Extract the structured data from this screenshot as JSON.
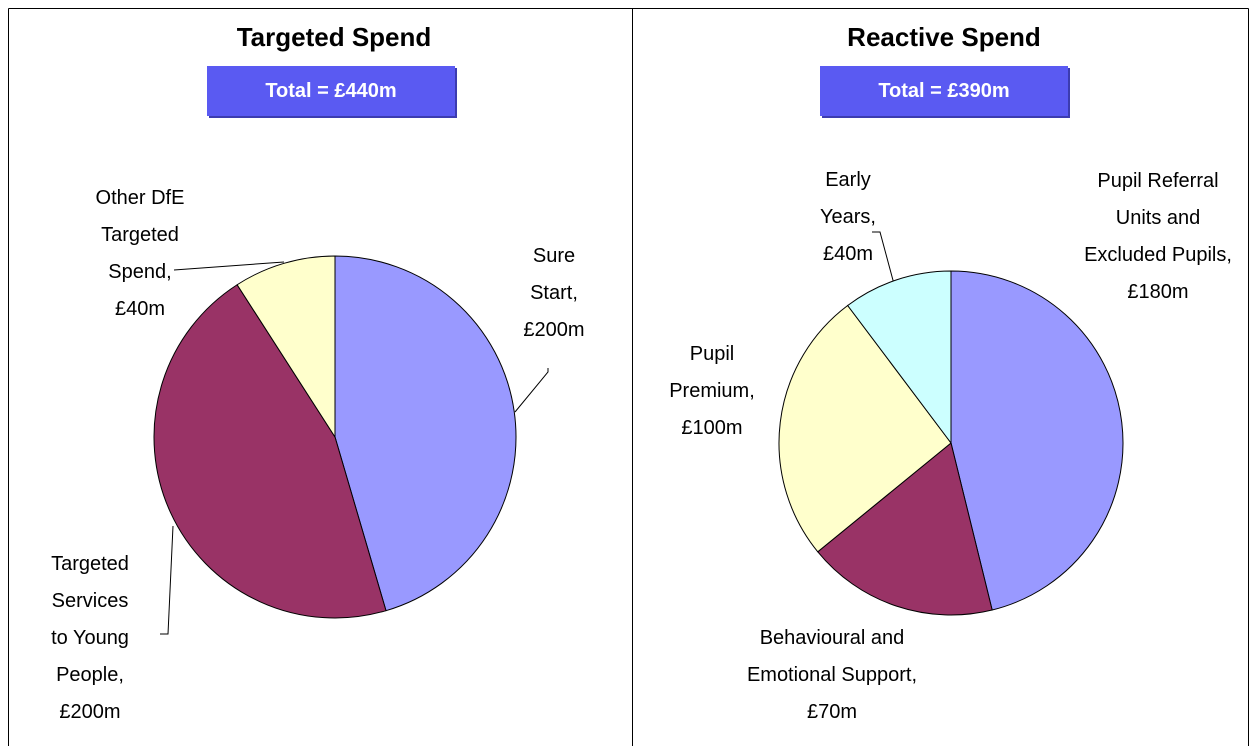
{
  "chart_data": [
    {
      "type": "pie",
      "title": "Targeted Spend",
      "annotation": "Total = £440m",
      "categories": [
        "Sure Start,",
        "Targeted Services to Young People,",
        "Other DfE Targeted Spend,"
      ],
      "values": [
        200,
        200,
        40
      ],
      "value_labels": [
        "£200m",
        "£200m",
        "£40m"
      ],
      "colors": [
        "#9999ff",
        "#993366",
        "#ffffcc"
      ]
    },
    {
      "type": "pie",
      "title": "Reactive Spend",
      "annotation": "Total = £390m",
      "categories": [
        "Pupil Referral Units and Excluded Pupils,",
        "Behavioural and Emotional Support,",
        "Pupil Premium,",
        "Early Years,"
      ],
      "values": [
        180,
        70,
        100,
        40
      ],
      "value_labels": [
        "£180m",
        "£70m",
        "£100m",
        "£40m"
      ],
      "colors": [
        "#9999ff",
        "#993366",
        "#ffffcc",
        "#ccffff"
      ]
    }
  ]
}
